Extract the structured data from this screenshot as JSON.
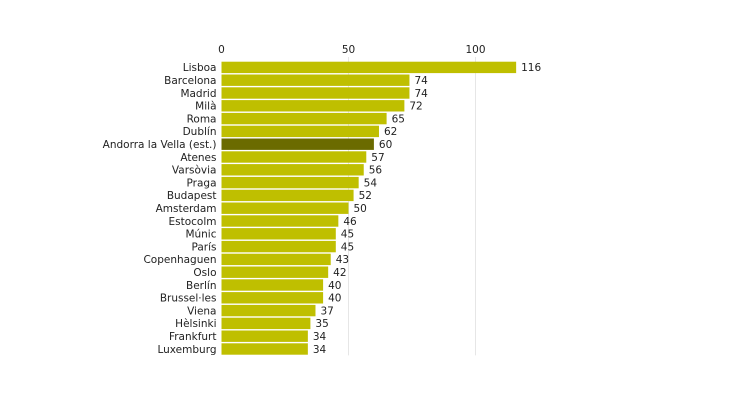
{
  "chart_data": {
    "type": "bar",
    "orientation": "horizontal",
    "title": "",
    "xlabel": "",
    "ylabel": "",
    "xlim": [
      0,
      120
    ],
    "x_ticks": [
      0,
      50,
      100
    ],
    "grid": true,
    "categories": [
      "Lisboa",
      "Barcelona",
      "Madrid",
      "Milà",
      "Roma",
      "Dublín",
      "Andorra la Vella (est.)",
      "Atenes",
      "Varsòvia",
      "Praga",
      "Budapest",
      "Amsterdam",
      "Estocolm",
      "Múnic",
      "París",
      "Copenhaguen",
      "Oslo",
      "Berlín",
      "Brussel·les",
      "Viena",
      "Hèlsinki",
      "Frankfurt",
      "Luxemburg"
    ],
    "values": [
      116,
      74,
      74,
      72,
      65,
      62,
      60,
      57,
      56,
      54,
      52,
      50,
      46,
      45,
      45,
      43,
      42,
      40,
      40,
      37,
      35,
      34,
      34
    ],
    "highlight": "Andorra la Vella (est.)",
    "colors": {
      "bar": "#bfbf00",
      "highlight": "#6b6b00",
      "grid": "#e6e6e6"
    }
  }
}
